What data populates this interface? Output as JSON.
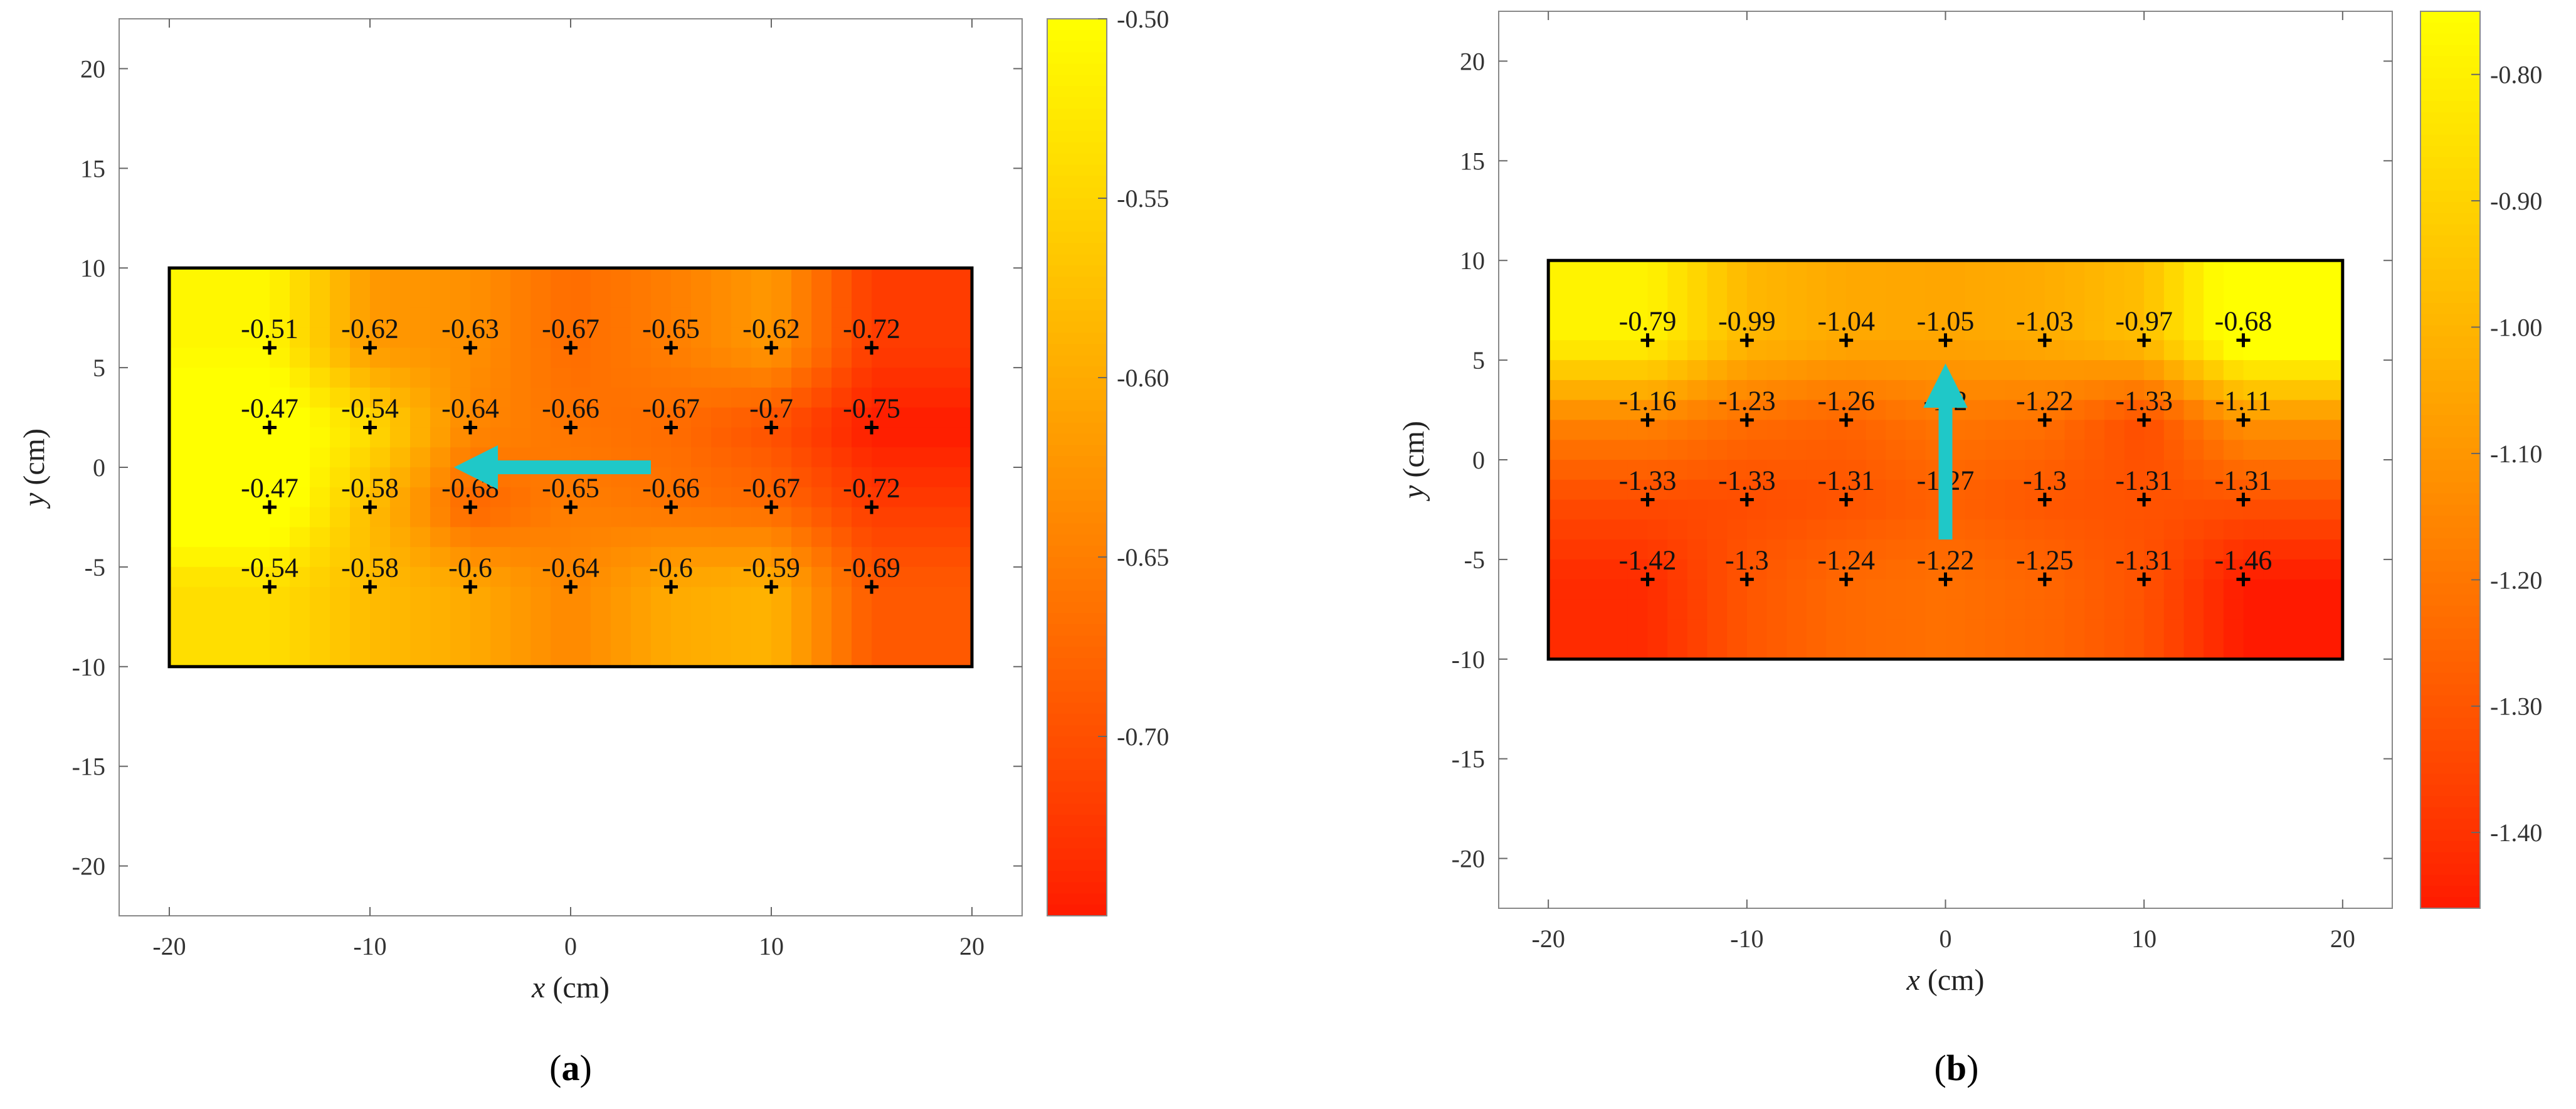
{
  "chart_data": [
    {
      "type": "heatmap",
      "panel": "a",
      "caption_letter": "a",
      "xlabel_var": "x",
      "xlabel_unit": " (cm)",
      "ylabel_var": "y",
      "ylabel_unit": " (cm)",
      "xlim": [
        -22.5,
        22.5
      ],
      "ylim": [
        -22.5,
        22.5
      ],
      "xticks": [
        -20,
        -10,
        0,
        10,
        20
      ],
      "yticks": [
        -20,
        -15,
        -10,
        -5,
        0,
        5,
        10,
        15,
        20
      ],
      "region": {
        "x": [
          -20,
          20
        ],
        "y": [
          -10,
          10
        ]
      },
      "x": [
        -15,
        -10,
        -5,
        0,
        5,
        10,
        15
      ],
      "y": [
        6,
        2,
        -2,
        -6
      ],
      "values": [
        [
          -0.51,
          -0.62,
          -0.63,
          -0.67,
          -0.65,
          -0.62,
          -0.72
        ],
        [
          -0.47,
          -0.54,
          -0.64,
          -0.66,
          -0.67,
          -0.7,
          -0.75
        ],
        [
          -0.47,
          -0.58,
          -0.68,
          -0.65,
          -0.66,
          -0.67,
          -0.72
        ],
        [
          -0.54,
          -0.58,
          -0.6,
          -0.64,
          -0.6,
          -0.59,
          -0.69
        ]
      ],
      "labels": [
        [
          "-0.51",
          "-0.62",
          "-0.63",
          "-0.67",
          "-0.65",
          "-0.62",
          "-0.72"
        ],
        [
          "-0.47",
          "-0.54",
          "-0.64",
          "-0.66",
          "-0.67",
          "-0.7",
          "-0.75"
        ],
        [
          "-0.47",
          "-0.58",
          "-0.68",
          "-0.65",
          "-0.66",
          "-0.67",
          "-0.72"
        ],
        [
          "-0.54",
          "-0.58",
          "-0.6",
          "-0.64",
          "-0.6",
          "-0.59",
          "-0.69"
        ]
      ],
      "colorbar": {
        "min": -0.75,
        "max": -0.5,
        "ticks": [
          -0.5,
          -0.55,
          -0.6,
          -0.65,
          -0.7
        ],
        "tick_labels": [
          "-0.50",
          "-0.55",
          "-0.60",
          "-0.65",
          "-0.70"
        ],
        "colormap": "autumn",
        "colors": {
          "low": "#ff1a00",
          "high": "#ffff00"
        }
      },
      "arrow": {
        "from": [
          4,
          0
        ],
        "to": [
          -4.5,
          0
        ],
        "color": "#1fc8c8"
      }
    },
    {
      "type": "heatmap",
      "panel": "b",
      "caption_letter": "b",
      "xlabel_var": "x",
      "xlabel_unit": " (cm)",
      "ylabel_var": "y",
      "ylabel_unit": " (cm)",
      "xlim": [
        -22.5,
        22.5
      ],
      "ylim": [
        -22.5,
        22.5
      ],
      "xticks": [
        -20,
        -10,
        0,
        10,
        20
      ],
      "yticks": [
        -20,
        -15,
        -10,
        -5,
        0,
        5,
        10,
        15,
        20
      ],
      "region": {
        "x": [
          -20,
          20
        ],
        "y": [
          -10,
          10
        ]
      },
      "x": [
        -15,
        -10,
        -5,
        0,
        5,
        10,
        15
      ],
      "y": [
        6,
        2,
        -2,
        -6
      ],
      "values": [
        [
          -0.79,
          -0.99,
          -1.04,
          -1.05,
          -1.03,
          -0.97,
          -0.68
        ],
        [
          -1.16,
          -1.23,
          -1.26,
          -1.2,
          -1.22,
          -1.33,
          -1.11
        ],
        [
          -1.33,
          -1.33,
          -1.31,
          -1.27,
          -1.3,
          -1.31,
          -1.31
        ],
        [
          -1.42,
          -1.3,
          -1.24,
          -1.22,
          -1.25,
          -1.31,
          -1.46
        ]
      ],
      "labels": [
        [
          "-0.79",
          "-0.99",
          "-1.04",
          "-1.05",
          "-1.03",
          "-0.97",
          "-0.68"
        ],
        [
          "-1.16",
          "-1.23",
          "-1.26",
          "-1.2",
          "-1.22",
          "-1.33",
          "-1.11"
        ],
        [
          "-1.33",
          "-1.33",
          "-1.31",
          "-1.27",
          "-1.3",
          "-1.31",
          "-1.31"
        ],
        [
          "-1.42",
          "-1.3",
          "-1.24",
          "-1.22",
          "-1.25",
          "-1.31",
          "-1.46"
        ]
      ],
      "colorbar": {
        "min": -1.46,
        "max": -0.75,
        "ticks": [
          -0.8,
          -0.9,
          -1.0,
          -1.1,
          -1.2,
          -1.3,
          -1.4
        ],
        "tick_labels": [
          "-0.80",
          "-0.90",
          "-1.00",
          "-1.10",
          "-1.20",
          "-1.30",
          "-1.40"
        ],
        "colormap": "autumn",
        "colors": {
          "low": "#ff1a00",
          "high": "#ffff00"
        }
      },
      "arrow": {
        "from": [
          0,
          -4
        ],
        "to": [
          0,
          3.5
        ],
        "color": "#1fc8c8"
      }
    }
  ]
}
